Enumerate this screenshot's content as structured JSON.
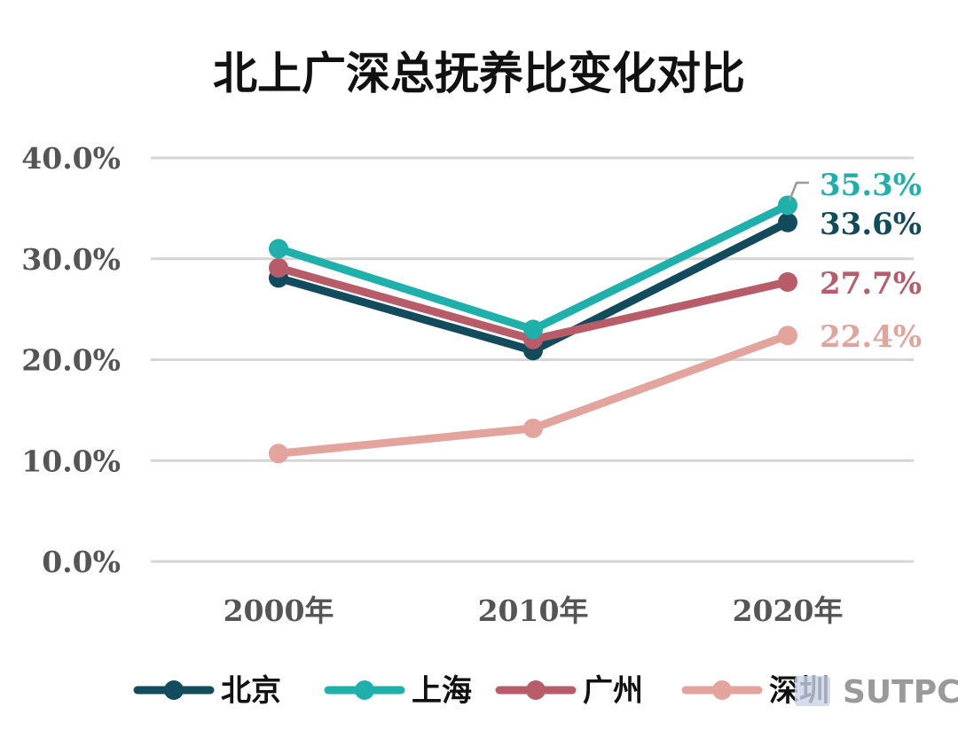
{
  "chart_data": {
    "type": "line",
    "title": "北上广深总抚养比变化对比",
    "categories": [
      "2000年",
      "2010年",
      "2020年"
    ],
    "y_ticks": [
      "0.0%",
      "10.0%",
      "20.0%",
      "30.0%",
      "40.0%"
    ],
    "ylim": [
      0,
      40
    ],
    "grid": true,
    "legend_position": "bottom",
    "series": [
      {
        "name": "北京",
        "color": "#124b5c",
        "values": [
          28.1,
          20.9,
          33.6
        ],
        "end_label": "33.6%"
      },
      {
        "name": "上海",
        "color": "#1fb0ac",
        "values": [
          31.0,
          23.0,
          35.3
        ],
        "end_label": "35.3%"
      },
      {
        "name": "广州",
        "color": "#b95c6a",
        "values": [
          29.1,
          22.0,
          27.7
        ],
        "end_label": "27.7%"
      },
      {
        "name": "深圳",
        "color": "#e3a49e",
        "values": [
          10.7,
          13.2,
          22.4
        ],
        "end_label": "22.4%"
      }
    ]
  },
  "watermark": {
    "text": "SUTPC"
  }
}
